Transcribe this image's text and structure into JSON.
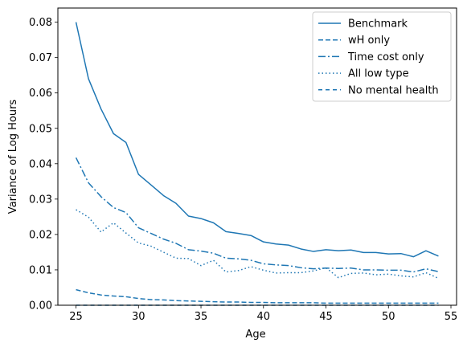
{
  "chart_data": {
    "type": "line",
    "xlabel": "Age",
    "ylabel": "Variance of Log  Hours",
    "xlim": [
      23.55,
      55.45
    ],
    "ylim": [
      0,
      0.084
    ],
    "xticks": [
      25,
      30,
      35,
      40,
      45,
      50,
      55
    ],
    "xtick_labels": [
      "25",
      "30",
      "35",
      "40",
      "45",
      "50",
      "55"
    ],
    "yticks": [
      0,
      0.01,
      0.02,
      0.03,
      0.04,
      0.05,
      0.06,
      0.07,
      0.08
    ],
    "ytick_labels": [
      "0.00",
      "0.01",
      "0.02",
      "0.03",
      "0.04",
      "0.05",
      "0.06",
      "0.07",
      "0.08"
    ],
    "grid": false,
    "legend_position": "top-right",
    "color": "#1f77b4",
    "x": [
      25,
      26,
      27,
      28,
      29,
      30,
      31,
      32,
      33,
      34,
      35,
      36,
      37,
      38,
      39,
      40,
      41,
      42,
      43,
      44,
      45,
      46,
      47,
      48,
      49,
      50,
      51,
      52,
      53,
      54
    ],
    "series": [
      {
        "name": "Benchmark",
        "dash": "solid",
        "values": [
          0.08,
          0.064,
          0.0555,
          0.0485,
          0.046,
          0.037,
          0.034,
          0.031,
          0.0288,
          0.0252,
          0.0245,
          0.0233,
          0.0208,
          0.0203,
          0.0197,
          0.0179,
          0.0173,
          0.017,
          0.0159,
          0.0152,
          0.0157,
          0.0154,
          0.0156,
          0.0149,
          0.0149,
          0.0145,
          0.0146,
          0.0137,
          0.0154,
          0.0139
        ]
      },
      {
        "name": "wH only",
        "dash": "dashed",
        "values": [
          0.0044,
          0.0035,
          0.0029,
          0.0026,
          0.0024,
          0.0019,
          0.0016,
          0.0015,
          0.0013,
          0.0012,
          0.0011,
          0.001,
          0.0009,
          0.0009,
          0.0008,
          0.0008,
          0.0007,
          0.0007,
          0.0007,
          0.0007,
          0.0006,
          0.0006,
          0.0006,
          0.0006,
          0.0006,
          0.0006,
          0.0006,
          0.0006,
          0.0006,
          0.0006
        ]
      },
      {
        "name": "Time cost only",
        "dash": "dashdot",
        "values": [
          0.0417,
          0.0346,
          0.0307,
          0.0276,
          0.0262,
          0.0219,
          0.0203,
          0.0187,
          0.0175,
          0.0157,
          0.0153,
          0.0147,
          0.0133,
          0.0131,
          0.0127,
          0.0117,
          0.0114,
          0.0112,
          0.0106,
          0.0103,
          0.0105,
          0.0104,
          0.0105,
          0.01,
          0.01,
          0.0099,
          0.0099,
          0.0094,
          0.0103,
          0.0095
        ]
      },
      {
        "name": "All low type",
        "dash": "dotted",
        "values": [
          0.027,
          0.0249,
          0.0207,
          0.0233,
          0.0204,
          0.0176,
          0.0167,
          0.015,
          0.0133,
          0.0132,
          0.0112,
          0.0127,
          0.0094,
          0.0098,
          0.0109,
          0.0099,
          0.0091,
          0.0092,
          0.0092,
          0.0097,
          0.0106,
          0.0078,
          0.009,
          0.0091,
          0.0086,
          0.0088,
          0.0083,
          0.008,
          0.0092,
          0.0076
        ]
      },
      {
        "name": "No mental health",
        "dash": "loosedash",
        "values": [
          0.0,
          0.0,
          0.0,
          0.0,
          0.0,
          0.0,
          0.0,
          0.0,
          0.0,
          0.0,
          0.0,
          0.0,
          0.0,
          0.0,
          0.0,
          0.0,
          0.0,
          0.0,
          0.0,
          0.0,
          0.0,
          0.0,
          0.0,
          0.0,
          0.0,
          0.0,
          0.0,
          0.0,
          0.0,
          0.0
        ]
      }
    ]
  }
}
